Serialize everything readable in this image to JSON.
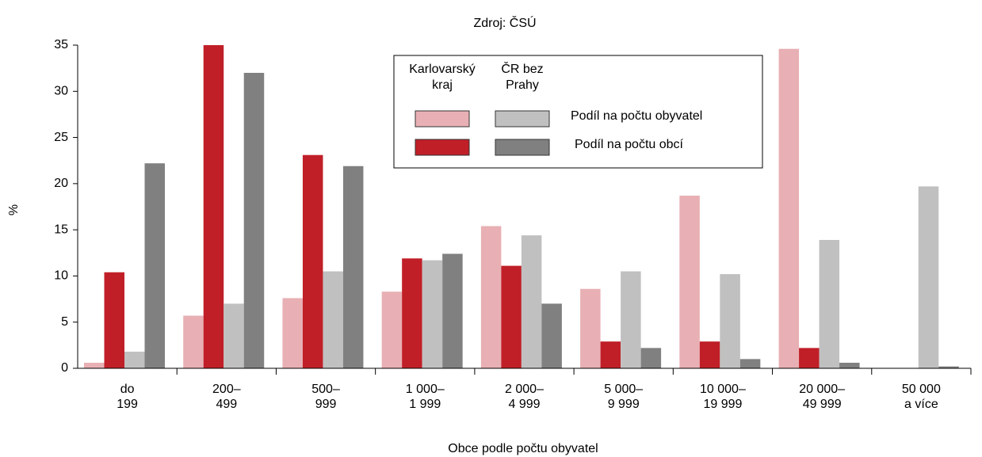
{
  "chart_data": {
    "type": "bar",
    "title": "Zdroj: ČSÚ",
    "y_label": "%",
    "x_label": "Obce podle počtu obyvatel",
    "categories": [
      [
        "do",
        "199"
      ],
      [
        "200–",
        "499"
      ],
      [
        "500–",
        "999"
      ],
      [
        "1 000–",
        "1 999"
      ],
      [
        "2 000–",
        "4 999"
      ],
      [
        "5 000–",
        "9 999"
      ],
      [
        "10 000–",
        "19 999"
      ],
      [
        "20 000–",
        "49 999"
      ],
      [
        "50 000",
        "a více"
      ]
    ],
    "series": [
      {
        "color": "#e8b0b4",
        "values": [
          0.6,
          5.7,
          7.6,
          8.3,
          15.4,
          8.6,
          18.7,
          34.6,
          0
        ]
      },
      {
        "color": "#c01f28",
        "values": [
          10.4,
          35.0,
          23.1,
          11.9,
          11.1,
          2.9,
          2.9,
          2.2,
          0
        ]
      },
      {
        "color": "#c0c0c0",
        "values": [
          1.8,
          7.0,
          10.5,
          11.7,
          14.4,
          10.5,
          10.2,
          13.9,
          19.7
        ]
      },
      {
        "color": "#808080",
        "values": [
          22.2,
          32.0,
          21.9,
          12.4,
          7.0,
          2.2,
          1.0,
          0.6,
          0.2
        ]
      }
    ],
    "legend": {
      "columns": [
        [
          "Karlovarský",
          "kraj"
        ],
        [
          "ČR bez",
          "Prahy"
        ]
      ],
      "rows": [
        "Podíl na počtu obyvatel",
        "Podíl na počtu obcí"
      ],
      "cells": [
        [
          0,
          2
        ],
        [
          1,
          3
        ]
      ]
    },
    "ylim": [
      0,
      35
    ],
    "yticks": [
      0,
      5,
      10,
      15,
      20,
      25,
      30,
      35
    ],
    "grid": false
  }
}
